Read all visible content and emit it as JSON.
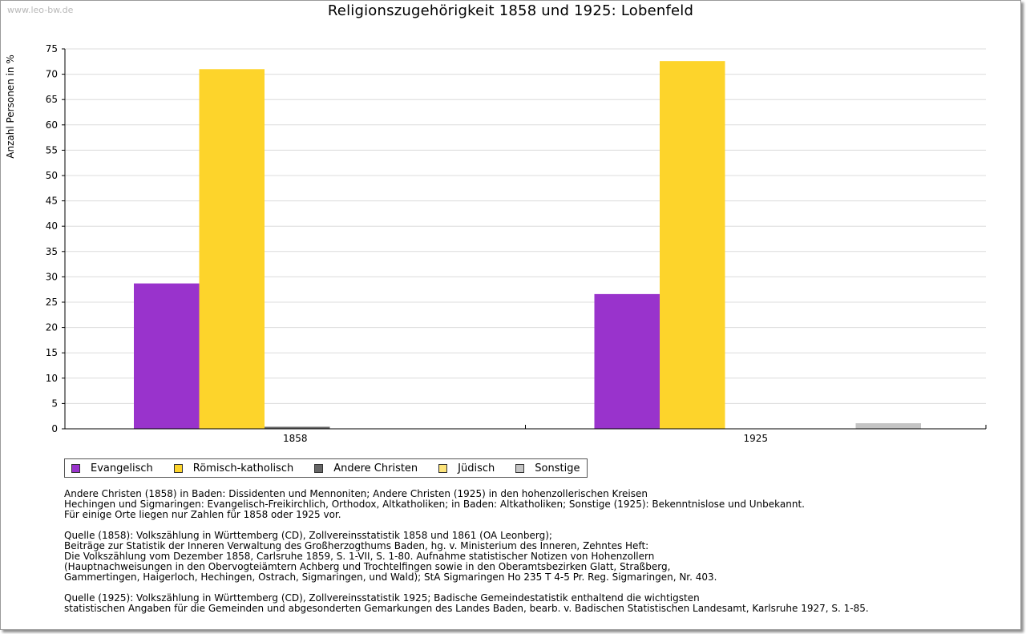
{
  "watermark": "www.leo-bw.de",
  "chart_data": {
    "type": "bar",
    "title": "Religionszugehörigkeit 1858 und 1925: Lobenfeld",
    "xlabel": "",
    "ylabel": "Anzahl Personen in %",
    "ylim": [
      0,
      75
    ],
    "yticks": [
      "0",
      "5",
      "10",
      "15",
      "20",
      "25",
      "30",
      "35",
      "40",
      "45",
      "50",
      "55",
      "60",
      "65",
      "70",
      "75"
    ],
    "grid": true,
    "categories": [
      "1858",
      "1925"
    ],
    "series": [
      {
        "name": "Evangelisch",
        "color": "#9933cc",
        "values": [
          28.7,
          26.6
        ]
      },
      {
        "name": "Römisch-katholisch",
        "color": "#fdd42b",
        "values": [
          71.0,
          72.6
        ]
      },
      {
        "name": "Andere Christen",
        "color": "#666666",
        "values": [
          0.4,
          0
        ]
      },
      {
        "name": "Jüdisch",
        "color": "#fde47a",
        "values": [
          0,
          0
        ]
      },
      {
        "name": "Sonstige",
        "color": "#c4c4c4",
        "values": [
          0,
          1.1
        ]
      }
    ],
    "legend_position": "bottom-left"
  },
  "notes": [
    [
      "Andere Christen (1858) in Baden: Dissidenten und Mennoniten; Andere Christen (1925) in den hohenzollerischen Kreisen",
      "Hechingen und Sigmaringen: Evangelisch-Freikirchlich, Orthodox, Altkatholiken; in Baden: Altkatholiken; Sonstige (1925): Bekenntnislose und Unbekannt.",
      "Für einige Orte liegen nur Zahlen für 1858 oder 1925 vor."
    ],
    [
      "Quelle (1858): Volkszählung in Württemberg (CD), Zollvereinsstatistik 1858 und 1861 (OA Leonberg);",
      "Beiträge zur Statistik der Inneren Verwaltung des Großherzogthums Baden, hg. v. Ministerium des Inneren, Zehntes Heft:",
      "Die Volkszählung vom Dezember 1858, Carlsruhe 1859, S. 1-VII, S. 1-80. Aufnahme statistischer Notizen von Hohenzollern",
      "(Hauptnachweisungen in den Obervogteiämtern Achberg und Trochtelfingen sowie in den Oberamtsbezirken Glatt, Straßberg,",
      "Gammertingen, Haigerloch, Hechingen, Ostrach, Sigmaringen, und Wald); StA Sigmaringen Ho 235 T 4-5 Pr. Reg. Sigmaringen, Nr. 403."
    ],
    [
      "Quelle (1925): Volkszählung in Württemberg (CD), Zollvereinsstatistik 1925; Badische Gemeindestatistik enthaltend die wichtigsten",
      "statistischen Angaben für die Gemeinden und abgesonderten Gemarkungen des Landes Baden, bearb. v. Badischen Statistischen Landesamt, Karlsruhe 1927, S. 1-85."
    ]
  ]
}
